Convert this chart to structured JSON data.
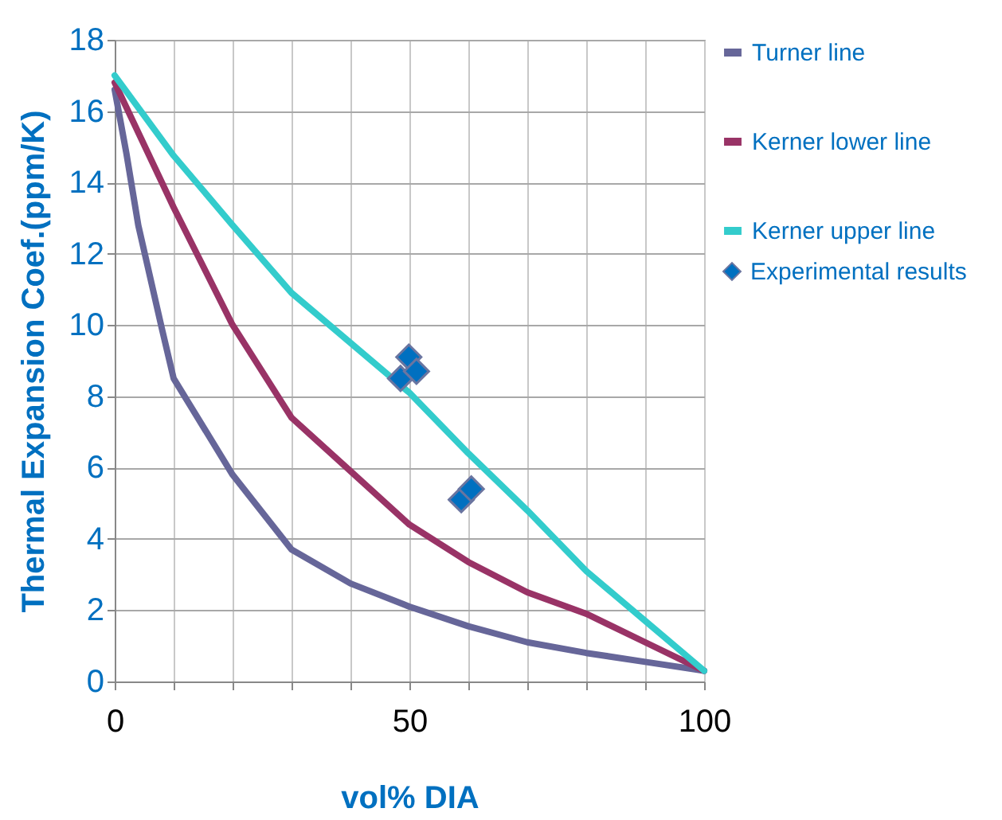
{
  "chart_data": {
    "type": "line",
    "xlabel": "vol% DIA",
    "ylabel": "Thermal Expansion Coef.(ppm/K)",
    "xlim": [
      0,
      100
    ],
    "ylim": [
      0,
      18
    ],
    "xticks": [
      0,
      {
        "value": 10,
        "label": null
      },
      {
        "value": 20,
        "label": null
      },
      {
        "value": 30,
        "label": null
      },
      {
        "value": 40,
        "label": null
      },
      50,
      {
        "value": 60,
        "label": null
      },
      {
        "value": 70,
        "label": null
      },
      {
        "value": 80,
        "label": null
      },
      {
        "value": 90,
        "label": null
      },
      100
    ],
    "yticks": [
      0,
      2,
      4,
      6,
      8,
      10,
      12,
      14,
      16,
      18
    ],
    "grid": true,
    "legend": "right",
    "line_style": "solid",
    "series": [
      {
        "name": "Turner line",
        "color": "#666699",
        "x": [
          0,
          2,
          4,
          8,
          10,
          20,
          30,
          40,
          50,
          60,
          70,
          80,
          90,
          100
        ],
        "values": [
          16.6,
          14.8,
          12.8,
          9.9,
          8.5,
          5.8,
          3.7,
          2.75,
          2.1,
          1.55,
          1.1,
          0.8,
          0.55,
          0.3
        ]
      },
      {
        "name": "Kerner lower line",
        "color": "#993366",
        "x": [
          0,
          10,
          20,
          30,
          40,
          50,
          60,
          70,
          80,
          90,
          100
        ],
        "values": [
          16.8,
          13.3,
          10.0,
          7.4,
          5.9,
          4.4,
          3.35,
          2.5,
          1.9,
          1.1,
          0.3
        ]
      },
      {
        "name": "Kerner upper line",
        "color": "#33cccc",
        "x": [
          0,
          10,
          20,
          30,
          40,
          50,
          60,
          70,
          80,
          90,
          100
        ],
        "values": [
          17.0,
          14.75,
          12.8,
          10.9,
          9.5,
          8.1,
          6.4,
          4.8,
          3.1,
          1.7,
          0.3
        ]
      },
      {
        "name": "Experimental results",
        "type": "scatter",
        "marker": "diamond",
        "color": "#0070c0",
        "x": [
          48.5,
          49.9,
          51.2,
          58.8,
          60.5
        ],
        "values": [
          8.5,
          9.1,
          8.7,
          5.1,
          5.4
        ]
      }
    ]
  }
}
